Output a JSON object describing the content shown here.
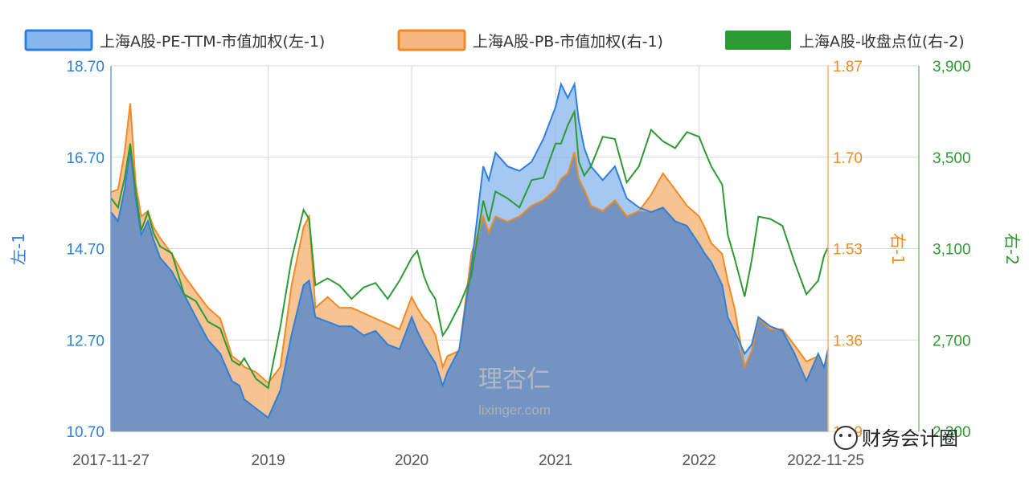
{
  "chart_data": {
    "type": "area",
    "dates": [
      "2017-11-27",
      "2017-12-15",
      "2018-01-01",
      "2018-01-15",
      "2018-01-29",
      "2018-02-12",
      "2018-03-01",
      "2018-03-15",
      "2018-04-01",
      "2018-05-01",
      "2018-06-01",
      "2018-07-01",
      "2018-08-01",
      "2018-09-01",
      "2018-10-01",
      "2018-10-20",
      "2018-11-01",
      "2018-12-01",
      "2019-01-01",
      "2019-02-01",
      "2019-03-01",
      "2019-04-01",
      "2019-04-15",
      "2019-05-01",
      "2019-06-01",
      "2019-07-01",
      "2019-08-01",
      "2019-09-01",
      "2019-10-01",
      "2019-11-01",
      "2019-12-01",
      "2020-01-01",
      "2020-01-15",
      "2020-02-01",
      "2020-02-15",
      "2020-03-01",
      "2020-03-20",
      "2020-04-01",
      "2020-05-01",
      "2020-06-01",
      "2020-07-01",
      "2020-07-15",
      "2020-08-01",
      "2020-09-01",
      "2020-10-01",
      "2020-11-01",
      "2020-12-01",
      "2021-01-01",
      "2021-01-15",
      "2021-02-01",
      "2021-02-18",
      "2021-03-01",
      "2021-03-15",
      "2021-04-01",
      "2021-05-01",
      "2021-06-01",
      "2021-07-01",
      "2021-08-01",
      "2021-09-01",
      "2021-10-01",
      "2021-11-01",
      "2021-12-01",
      "2022-01-01",
      "2022-01-15",
      "2022-02-01",
      "2022-03-01",
      "2022-03-15",
      "2022-04-01",
      "2022-04-27",
      "2022-05-15",
      "2022-06-01",
      "2022-07-01",
      "2022-08-01",
      "2022-09-01",
      "2022-10-01",
      "2022-10-31",
      "2022-11-15",
      "2022-11-25"
    ],
    "series": [
      {
        "name": "上海A股-PE-TTM-市值加权(左-1)",
        "axis": "left",
        "color": "#2f7fdc",
        "values": [
          15.5,
          15.3,
          16.0,
          16.9,
          15.8,
          15.0,
          15.3,
          14.9,
          14.5,
          14.2,
          13.7,
          13.2,
          12.7,
          12.4,
          11.8,
          11.7,
          11.4,
          11.2,
          11.0,
          11.6,
          12.8,
          13.9,
          14.0,
          13.2,
          13.1,
          13.0,
          13.0,
          12.8,
          12.9,
          12.6,
          12.5,
          13.2,
          12.9,
          12.6,
          12.4,
          12.2,
          11.7,
          12.0,
          12.5,
          14.3,
          16.5,
          16.2,
          16.8,
          16.5,
          16.4,
          16.6,
          17.1,
          17.8,
          18.3,
          18.0,
          18.3,
          17.5,
          16.9,
          16.5,
          16.2,
          16.5,
          15.8,
          15.6,
          15.5,
          15.6,
          15.3,
          15.2,
          14.8,
          14.6,
          14.4,
          13.9,
          13.2,
          12.9,
          12.4,
          12.6,
          13.2,
          13.0,
          12.9,
          12.4,
          11.8,
          12.4,
          12.1,
          12.5
        ]
      },
      {
        "name": "上海A股-PB-市值加权(右-1)",
        "axis": "right1",
        "color": "#f08a24",
        "values": [
          1.635,
          1.64,
          1.71,
          1.8,
          1.65,
          1.59,
          1.6,
          1.57,
          1.55,
          1.52,
          1.48,
          1.45,
          1.42,
          1.4,
          1.33,
          1.32,
          1.31,
          1.3,
          1.28,
          1.31,
          1.46,
          1.57,
          1.59,
          1.42,
          1.44,
          1.42,
          1.42,
          1.41,
          1.4,
          1.39,
          1.38,
          1.44,
          1.42,
          1.4,
          1.39,
          1.37,
          1.31,
          1.33,
          1.34,
          1.52,
          1.59,
          1.56,
          1.59,
          1.58,
          1.59,
          1.61,
          1.62,
          1.64,
          1.66,
          1.67,
          1.71,
          1.66,
          1.64,
          1.61,
          1.6,
          1.62,
          1.59,
          1.6,
          1.63,
          1.67,
          1.64,
          1.61,
          1.59,
          1.57,
          1.54,
          1.52,
          1.47,
          1.42,
          1.31,
          1.34,
          1.4,
          1.38,
          1.38,
          1.35,
          1.32,
          1.33,
          1.31,
          1.33
        ]
      },
      {
        "name": "上海A股-收盘点位(右-2)",
        "axis": "right2",
        "color": "#2e9a34",
        "values": [
          3322,
          3280,
          3410,
          3560,
          3350,
          3180,
          3260,
          3170,
          3110,
          3080,
          2900,
          2870,
          2780,
          2750,
          2610,
          2590,
          2620,
          2530,
          2490,
          2760,
          3050,
          3270,
          3230,
          2940,
          2970,
          2940,
          2880,
          2930,
          2950,
          2880,
          2960,
          3060,
          3090,
          2980,
          2920,
          2880,
          2720,
          2750,
          2850,
          2980,
          3310,
          3220,
          3350,
          3320,
          3280,
          3400,
          3410,
          3560,
          3560,
          3640,
          3700,
          3480,
          3420,
          3460,
          3590,
          3580,
          3390,
          3460,
          3620,
          3570,
          3540,
          3610,
          3590,
          3530,
          3460,
          3380,
          3160,
          3060,
          2890,
          3050,
          3240,
          3230,
          3200,
          3040,
          2900,
          2960,
          3070,
          3105
        ]
      }
    ],
    "legend": [
      "上海A股-PE-TTM-市值加权(左-1)",
      "上海A股-PB-市值加权(右-1)",
      "上海A股-收盘点位(右-2)"
    ],
    "axes": {
      "left": {
        "title": "左-1",
        "ticks": [
          "18.70",
          "16.70",
          "14.70",
          "12.70",
          "10.70"
        ],
        "range": [
          10.7,
          18.7
        ]
      },
      "right1": {
        "title": "右-1",
        "ticks": [
          "1.87",
          "1.70",
          "1.53",
          "1.36",
          "1.19"
        ],
        "range": [
          1.19,
          1.87
        ]
      },
      "right2": {
        "title": "右-2",
        "ticks": [
          "3,900",
          "3,500",
          "3,100",
          "2,700",
          "2,300"
        ],
        "range": [
          2300,
          3900
        ]
      },
      "x": {
        "ticks": [
          "2017-11-27",
          "2019",
          "2020",
          "2021",
          "2022",
          "2022-11-25"
        ],
        "range": [
          "2017-11-27",
          "2022-11-25"
        ]
      }
    },
    "grid": true
  },
  "watermark": {
    "line1": "理杏仁",
    "line2": "lixinger.com"
  },
  "badge": {
    "text": "财务会计圈"
  },
  "colors": {
    "pe_fill": "#86b6ee",
    "pb_fill": "#f6b880",
    "overlap_fill": "#6e8fbf",
    "grid": "#d8d8d8"
  }
}
